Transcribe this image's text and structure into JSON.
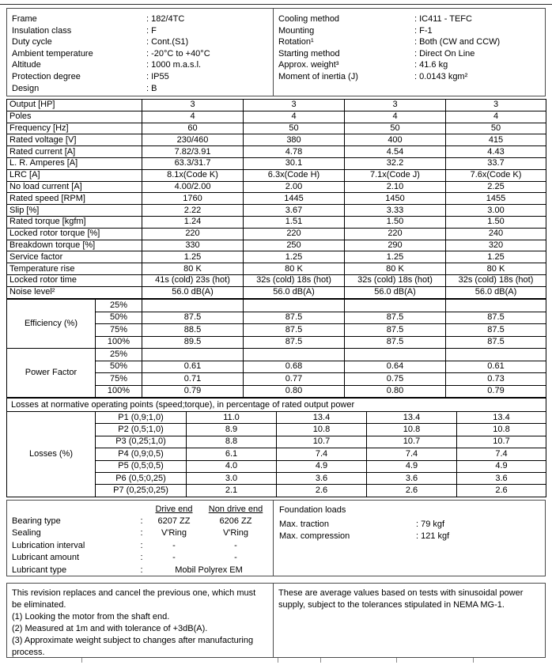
{
  "header": {
    "left": [
      {
        "label": "Frame",
        "value": ": 182/4TC"
      },
      {
        "label": "Insulation class",
        "value": ": F"
      },
      {
        "label": "Duty cycle",
        "value": ": Cont.(S1)"
      },
      {
        "label": "Ambient temperature",
        "value": ": -20°C to +40°C"
      },
      {
        "label": "Altitude",
        "value": ": 1000 m.a.s.l."
      },
      {
        "label": "Protection degree",
        "value": ": IP55"
      },
      {
        "label": "Design",
        "value": ": B"
      }
    ],
    "right": [
      {
        "label": "Cooling method",
        "value": ": IC411 - TEFC"
      },
      {
        "label": "Mounting",
        "value": ": F-1"
      },
      {
        "label": "Rotation¹",
        "value": ": Both (CW and CCW)"
      },
      {
        "label": "Starting method",
        "value": ": Direct On Line"
      },
      {
        "label": "Approx. weight³",
        "value": ": 41.6 kg"
      },
      {
        "label": "Moment of inertia (J)",
        "value": ": 0.0143 kgm²"
      }
    ]
  },
  "ratings": {
    "rows": [
      {
        "label": "Output [HP]",
        "values": [
          "3",
          "3",
          "3",
          "3"
        ]
      },
      {
        "label": "Poles",
        "values": [
          "4",
          "4",
          "4",
          "4"
        ]
      },
      {
        "label": "Frequency [Hz]",
        "values": [
          "60",
          "50",
          "50",
          "50"
        ]
      },
      {
        "label": "Rated voltage [V]",
        "values": [
          "230/460",
          "380",
          "400",
          "415"
        ]
      },
      {
        "label": "Rated current [A]",
        "values": [
          "7.82/3.91",
          "4.78",
          "4.54",
          "4.43"
        ]
      },
      {
        "label": "L. R. Amperes [A]",
        "values": [
          "63.3/31.7",
          "30.1",
          "32.2",
          "33.7"
        ]
      },
      {
        "label": "LRC [A]",
        "values": [
          "8.1x(Code K)",
          "6.3x(Code H)",
          "7.1x(Code J)",
          "7.6x(Code K)"
        ]
      },
      {
        "label": "No load current [A]",
        "values": [
          "4.00/2.00",
          "2.00",
          "2.10",
          "2.25"
        ]
      },
      {
        "label": "Rated speed [RPM]",
        "values": [
          "1760",
          "1445",
          "1450",
          "1455"
        ]
      },
      {
        "label": "Slip [%]",
        "values": [
          "2.22",
          "3.67",
          "3.33",
          "3.00"
        ]
      },
      {
        "label": "Rated torque [kgfm]",
        "values": [
          "1.24",
          "1.51",
          "1.50",
          "1.50"
        ]
      },
      {
        "label": "Locked rotor torque [%]",
        "values": [
          "220",
          "220",
          "220",
          "240"
        ]
      },
      {
        "label": "Breakdown torque [%]",
        "values": [
          "330",
          "250",
          "290",
          "320"
        ]
      },
      {
        "label": "Service factor",
        "values": [
          "1.25",
          "1.25",
          "1.25",
          "1.25"
        ]
      },
      {
        "label": "Temperature rise",
        "values": [
          "80 K",
          "80 K",
          "80 K",
          "80 K"
        ]
      },
      {
        "label": "Locked rotor time",
        "values": [
          "41s (cold) 23s (hot)",
          "32s (cold) 18s (hot)",
          "32s (cold) 18s (hot)",
          "32s (cold) 18s (hot)"
        ]
      },
      {
        "label": "Noise level²",
        "values": [
          "56.0 dB(A)",
          "56.0 dB(A)",
          "56.0 dB(A)",
          "56.0 dB(A)"
        ]
      }
    ]
  },
  "efficiency": {
    "label": "Efficiency (%)",
    "rows": [
      {
        "load": "25%",
        "values": [
          "",
          "",
          "",
          ""
        ]
      },
      {
        "load": "50%",
        "values": [
          "87.5",
          "87.5",
          "87.5",
          "87.5"
        ]
      },
      {
        "load": "75%",
        "values": [
          "88.5",
          "87.5",
          "87.5",
          "87.5"
        ]
      },
      {
        "load": "100%",
        "values": [
          "89.5",
          "87.5",
          "87.5",
          "87.5"
        ]
      }
    ]
  },
  "power_factor": {
    "label": "Power Factor",
    "rows": [
      {
        "load": "25%",
        "values": [
          "",
          "",
          "",
          ""
        ]
      },
      {
        "load": "50%",
        "values": [
          "0.61",
          "0.68",
          "0.64",
          "0.61"
        ]
      },
      {
        "load": "75%",
        "values": [
          "0.71",
          "0.77",
          "0.75",
          "0.73"
        ]
      },
      {
        "load": "100%",
        "values": [
          "0.79",
          "0.80",
          "0.80",
          "0.79"
        ]
      }
    ]
  },
  "losses": {
    "caption": "Losses at normative operating points (speed;torque), in percentage of rated output power",
    "label": "Losses (%)",
    "rows": [
      {
        "point": "P1 (0,9;1,0)",
        "values": [
          "11.0",
          "13.4",
          "13.4",
          "13.4"
        ]
      },
      {
        "point": "P2 (0,5;1,0)",
        "values": [
          "8.9",
          "10.8",
          "10.8",
          "10.8"
        ]
      },
      {
        "point": "P3 (0,25;1,0)",
        "values": [
          "8.8",
          "10.7",
          "10.7",
          "10.7"
        ]
      },
      {
        "point": "P4 (0,9;0,5)",
        "values": [
          "6.1",
          "7.4",
          "7.4",
          "7.4"
        ]
      },
      {
        "point": "P5 (0,5;0,5)",
        "values": [
          "4.0",
          "4.9",
          "4.9",
          "4.9"
        ]
      },
      {
        "point": "P6 (0,5;0,25)",
        "values": [
          "3.0",
          "3.6",
          "3.6",
          "3.6"
        ]
      },
      {
        "point": "P7 (0,25;0,25)",
        "values": [
          "2.1",
          "2.6",
          "2.6",
          "2.6"
        ]
      }
    ]
  },
  "bearings": {
    "col_headers": [
      "Drive end",
      "Non drive end"
    ],
    "rows": [
      {
        "label": "Bearing type",
        "colon": ":",
        "drive_end": "6207 ZZ",
        "non_drive_end": "6206 ZZ"
      },
      {
        "label": "Sealing",
        "colon": ":",
        "drive_end": "V'Ring",
        "non_drive_end": "V'Ring"
      },
      {
        "label": "Lubrication interval",
        "colon": ":",
        "drive_end": "-",
        "non_drive_end": "-"
      },
      {
        "label": "Lubricant amount",
        "colon": ":",
        "drive_end": "-",
        "non_drive_end": "-"
      },
      {
        "label": "Lubricant type",
        "colon": ":",
        "span": "Mobil Polyrex EM"
      }
    ]
  },
  "foundation": {
    "title": "Foundation loads",
    "rows": [
      {
        "label": "Max. traction",
        "value": ": 79 kgf"
      },
      {
        "label": "Max. compression",
        "value": ": 121 kgf"
      }
    ]
  },
  "notes": {
    "left": [
      "This revision replaces and cancel the previous one, which must be eliminated.",
      "(1) Looking the motor from the shaft end.",
      "(2) Measured at 1m and with tolerance of +3dB(A).",
      "(3) Approximate weight subject to changes after manufacturing process."
    ],
    "right": [
      "These are average values based on tests with sinusoidal power supply, subject to the tolerances stipulated in NEMA MG-1."
    ]
  }
}
